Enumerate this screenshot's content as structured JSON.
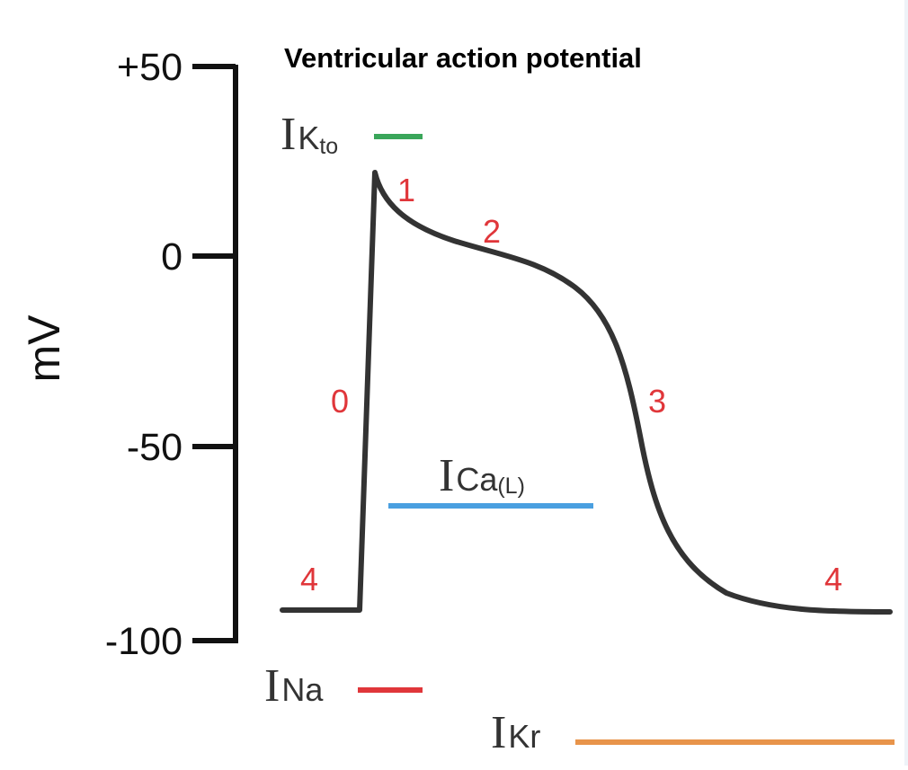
{
  "title": "Ventricular action potential",
  "y_axis": {
    "label": "mV",
    "ticks": [
      {
        "value": 50,
        "label": "+50"
      },
      {
        "value": 0,
        "label": "0"
      },
      {
        "value": -50,
        "label": "-50"
      },
      {
        "value": -100,
        "label": "-100"
      }
    ]
  },
  "phases": [
    {
      "id": "0",
      "label": "0"
    },
    {
      "id": "1",
      "label": "1"
    },
    {
      "id": "2",
      "label": "2"
    },
    {
      "id": "3",
      "label": "3"
    },
    {
      "id": "4a",
      "label": "4"
    },
    {
      "id": "4b",
      "label": "4"
    }
  ],
  "currents": [
    {
      "id": "Kto",
      "prefix": "I",
      "name": "K",
      "subscript": "to",
      "color": "#3aa65a"
    },
    {
      "id": "CaL",
      "prefix": "I",
      "name": "Ca",
      "subscript": "(L)",
      "color": "#4a9fe0"
    },
    {
      "id": "Na",
      "prefix": "I",
      "name": "Na",
      "subscript": "",
      "color": "#e0363a"
    },
    {
      "id": "Kr",
      "prefix": "I",
      "name": "Kr",
      "subscript": "",
      "color": "#e8944a"
    }
  ],
  "colors": {
    "trace": "#333333",
    "axis": "#111111",
    "phase_labels": "#e0363a"
  }
}
